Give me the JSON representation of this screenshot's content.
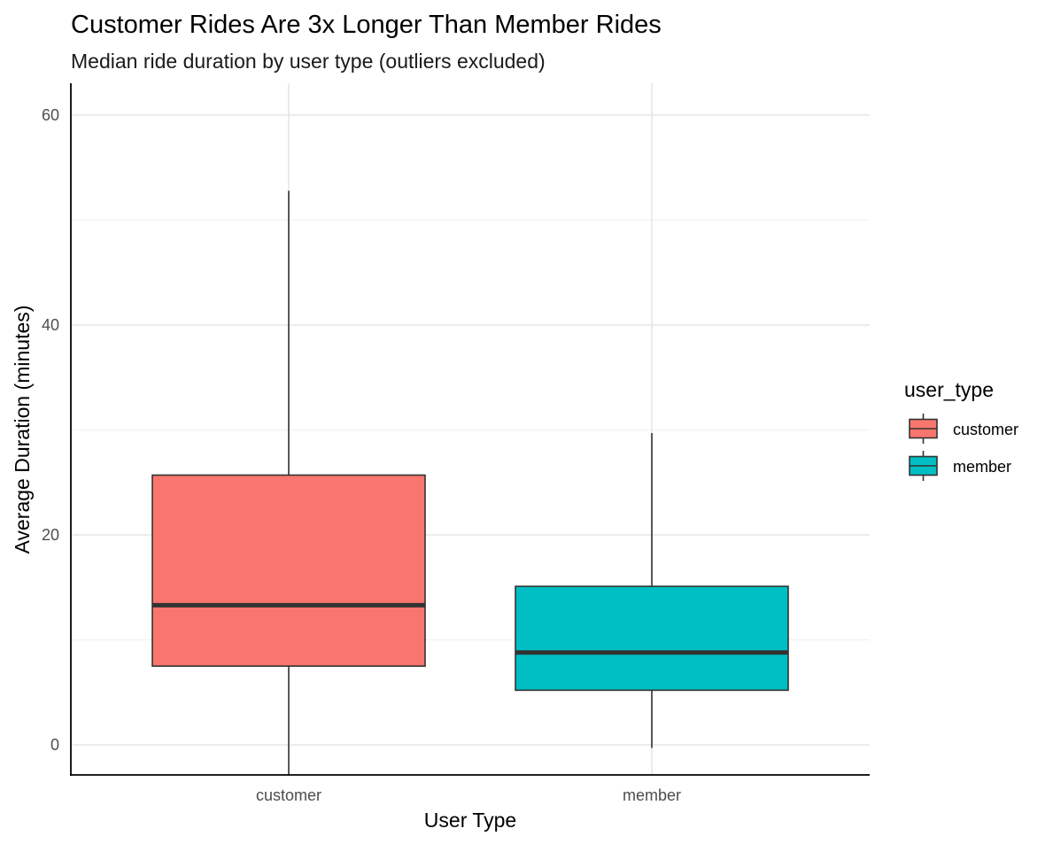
{
  "chart_data": {
    "type": "boxplot",
    "title": "Customer Rides Are 3x Longer Than Member Rides",
    "subtitle": "Median ride duration by user type (outliers excluded)",
    "xlabel": "User Type",
    "ylabel": "Average Duration (minutes)",
    "categories": [
      "customer",
      "member"
    ],
    "ylim": [
      -2.9,
      63
    ],
    "y_major_ticks": [
      0,
      20,
      40,
      60
    ],
    "y_minor_ticks": [
      10,
      30,
      50
    ],
    "grid": true,
    "legend": {
      "title": "user_type",
      "position": "right",
      "entries": [
        "customer",
        "member"
      ]
    },
    "series": [
      {
        "category": "customer",
        "color": "#F8766D",
        "whisker_low": -2.9,
        "q1": 7.5,
        "median": 13.3,
        "q3": 25.7,
        "whisker_high": 52.8
      },
      {
        "category": "member",
        "color": "#00BFC4",
        "whisker_low": -0.3,
        "q1": 5.2,
        "median": 8.8,
        "q3": 15.1,
        "whisker_high": 29.7
      }
    ]
  }
}
